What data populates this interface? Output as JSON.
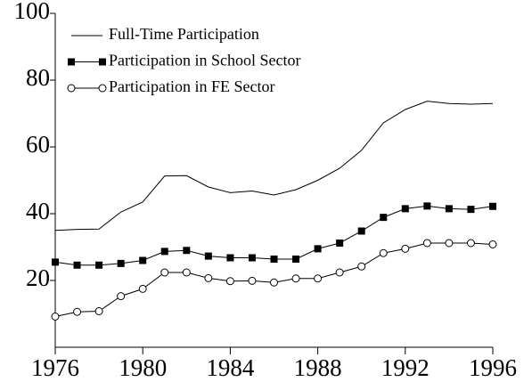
{
  "chart_data": {
    "type": "line",
    "x": [
      1976,
      1977,
      1978,
      1979,
      1980,
      1981,
      1982,
      1983,
      1984,
      1985,
      1986,
      1987,
      1988,
      1989,
      1990,
      1991,
      1992,
      1993,
      1994,
      1995,
      1996
    ],
    "series": [
      {
        "name": "Full-Time Participation",
        "color": "#000000",
        "marker": "none",
        "values": [
          35,
          35.3,
          35.4,
          40.5,
          43.5,
          51.3,
          51.4,
          48,
          46.3,
          46.8,
          45.6,
          47.2,
          50,
          53.6,
          59,
          67.2,
          71.2,
          73.7,
          73,
          72.8,
          73
        ]
      },
      {
        "name": "Participation in School Sector",
        "color": "#000000",
        "marker": "square-filled",
        "values": [
          25.5,
          24.6,
          24.6,
          25.1,
          26,
          28.7,
          29,
          27.3,
          26.8,
          26.8,
          26.4,
          26.4,
          29.5,
          31.2,
          34.8,
          38.9,
          41.5,
          42.3,
          41.5,
          41.3,
          42.2
        ]
      },
      {
        "name": "Participation in FE Sector",
        "color": "#000000",
        "marker": "circle-open",
        "values": [
          9.2,
          10.6,
          10.8,
          15.3,
          17.5,
          22.4,
          22.4,
          20.7,
          19.8,
          19.9,
          19.4,
          20.6,
          20.6,
          22.4,
          24.2,
          28.2,
          29.5,
          31.2,
          31.2,
          31.2,
          30.8
        ]
      }
    ],
    "xlim": [
      1976,
      1996
    ],
    "xticks": [
      1976,
      1980,
      1984,
      1988,
      1992,
      1996
    ],
    "ylim": [
      0,
      100
    ],
    "yticks": [
      20,
      40,
      60,
      80,
      100
    ],
    "legend": "upper-left"
  }
}
